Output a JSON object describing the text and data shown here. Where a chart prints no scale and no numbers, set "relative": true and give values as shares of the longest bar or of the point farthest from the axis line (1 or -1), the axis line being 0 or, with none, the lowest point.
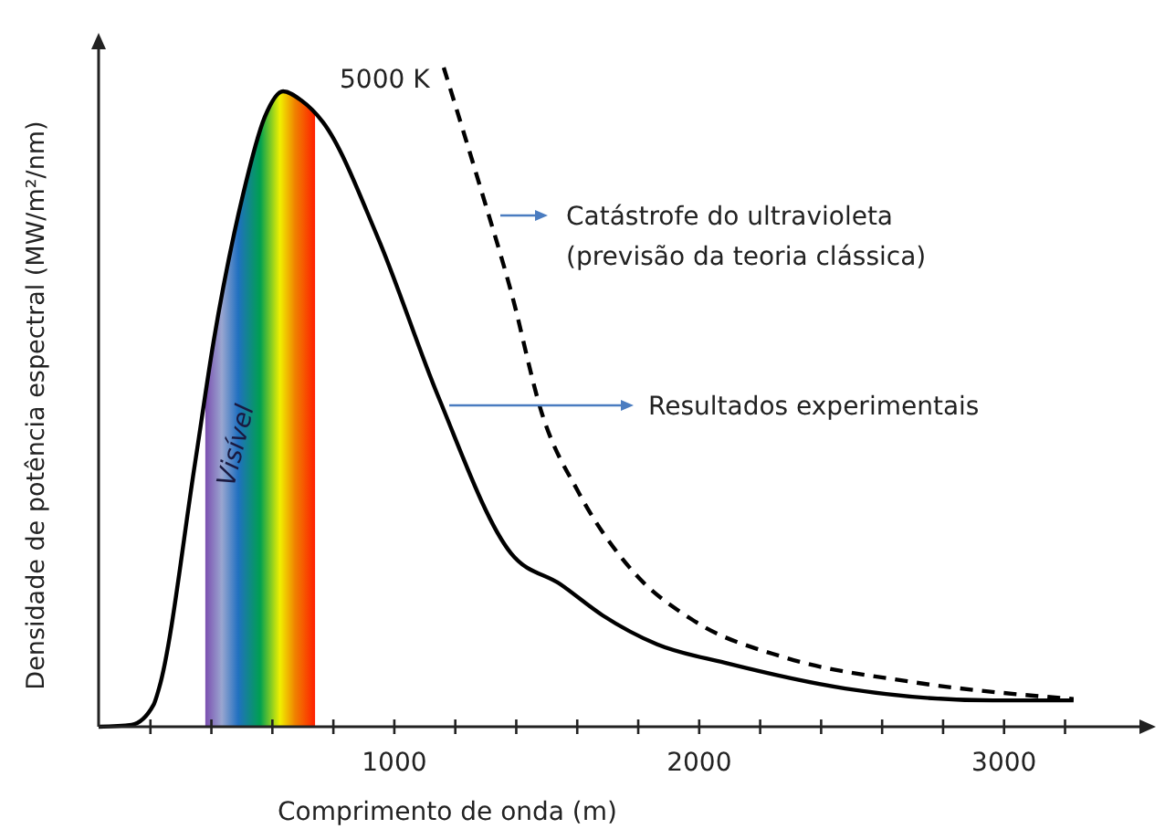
{
  "chart_data": {
    "type": "line",
    "relative": true,
    "xlabel": "Comprimento de onda (m)",
    "ylabel": "Densidade de potência espectral (MW/m²/nm)",
    "xlim": [
      30,
      3450
    ],
    "xticks": [
      {
        "value": 200,
        "label": null
      },
      {
        "value": 400,
        "label": null
      },
      {
        "value": 600,
        "label": null
      },
      {
        "value": 800,
        "label": null
      },
      1000,
      {
        "value": 1200,
        "label": null
      },
      {
        "value": 1400,
        "label": null
      },
      {
        "value": 1600,
        "label": null
      },
      {
        "value": 1800,
        "label": null
      },
      2000,
      {
        "value": 2200,
        "label": null
      },
      {
        "value": 2400,
        "label": null
      },
      {
        "value": 2600,
        "label": null
      },
      {
        "value": 2800,
        "label": null
      },
      3000,
      {
        "value": 3200,
        "label": null
      }
    ],
    "marker": "none",
    "series": [
      {
        "color": "#000000",
        "line_style": "solid",
        "x": [
          30,
          138,
          210,
          228,
          347,
          407,
          503,
          575,
          635,
          695,
          766,
          946,
          1144,
          1383,
          1545,
          1683,
          1862,
          2084,
          2479,
          2964,
          3228
        ],
        "values": [
          0,
          0.003,
          0.033,
          0.058,
          0.402,
          0.584,
          0.806,
          0.925,
          0.964,
          0.95,
          0.917,
          0.742,
          0.501,
          0.263,
          0.216,
          0.169,
          0.125,
          0.097,
          0.058,
          0.04,
          0.04
        ]
      },
      {
        "color": "#000000",
        "line_style": "dashed",
        "x": [
          1162,
          1281,
          1383,
          1485,
          1605,
          1784,
          1982,
          2281,
          2683,
          3228
        ],
        "values": [
          1,
          0.82,
          0.66,
          0.474,
          0.355,
          0.235,
          0.161,
          0.105,
          0.069,
          0.042
        ]
      }
    ],
    "bands": [
      {
        "axis": "x",
        "from": 380,
        "to": 740,
        "label": "Visível"
      }
    ],
    "annotations": [
      "5000 K",
      "Catástrofe do ultravioleta\n(previsão da teoria clássica)",
      "Resultados experimentais"
    ]
  }
}
